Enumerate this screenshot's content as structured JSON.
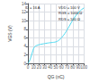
{
  "chart_data": {
    "type": "line",
    "xlabel": "QG (nC)",
    "ylabel": "VGS (V)",
    "annotations": [
      "ID = 16 A",
      "VDD = 100 V",
      "RGS = 1000 Ω",
      "RDS = 100 Ω"
    ],
    "x": [
      0,
      1,
      2,
      3,
      4,
      5,
      6,
      7,
      8,
      9,
      10,
      12,
      14,
      16,
      18,
      20,
      22,
      24,
      26,
      28,
      30,
      32,
      34,
      36,
      38,
      40,
      42,
      44,
      46,
      48,
      50,
      52,
      54,
      56,
      58,
      60,
      62,
      64,
      66,
      68,
      70,
      72,
      74,
      76,
      78,
      80,
      82,
      84,
      86,
      88,
      90,
      92,
      94,
      96,
      98,
      100
    ],
    "values": [
      0.0,
      0.15,
      0.35,
      0.6,
      0.9,
      1.3,
      1.7,
      2.1,
      2.55,
      3.0,
      3.4,
      3.9,
      4.1,
      4.2,
      4.3,
      4.4,
      4.45,
      4.5,
      4.55,
      4.6,
      4.65,
      4.7,
      4.75,
      4.78,
      4.82,
      4.85,
      4.88,
      4.92,
      4.95,
      4.98,
      5.05,
      5.15,
      5.3,
      5.5,
      5.75,
      6.0,
      6.3,
      6.65,
      7.0,
      7.4,
      7.85,
      8.3,
      8.75,
      9.2,
      9.65,
      10.1,
      10.5,
      10.9,
      11.25,
      11.6,
      11.9,
      12.15,
      12.4,
      12.6,
      12.8,
      13.0
    ],
    "color": "#4dd9f0",
    "xlim": [
      0,
      100
    ],
    "ylim": [
      0,
      14
    ],
    "xticks": [
      0,
      10,
      20,
      30,
      40,
      50,
      60,
      70,
      80,
      90,
      100
    ],
    "yticks": [
      0,
      2,
      4,
      6,
      8,
      10,
      12,
      14
    ],
    "grid": true
  }
}
